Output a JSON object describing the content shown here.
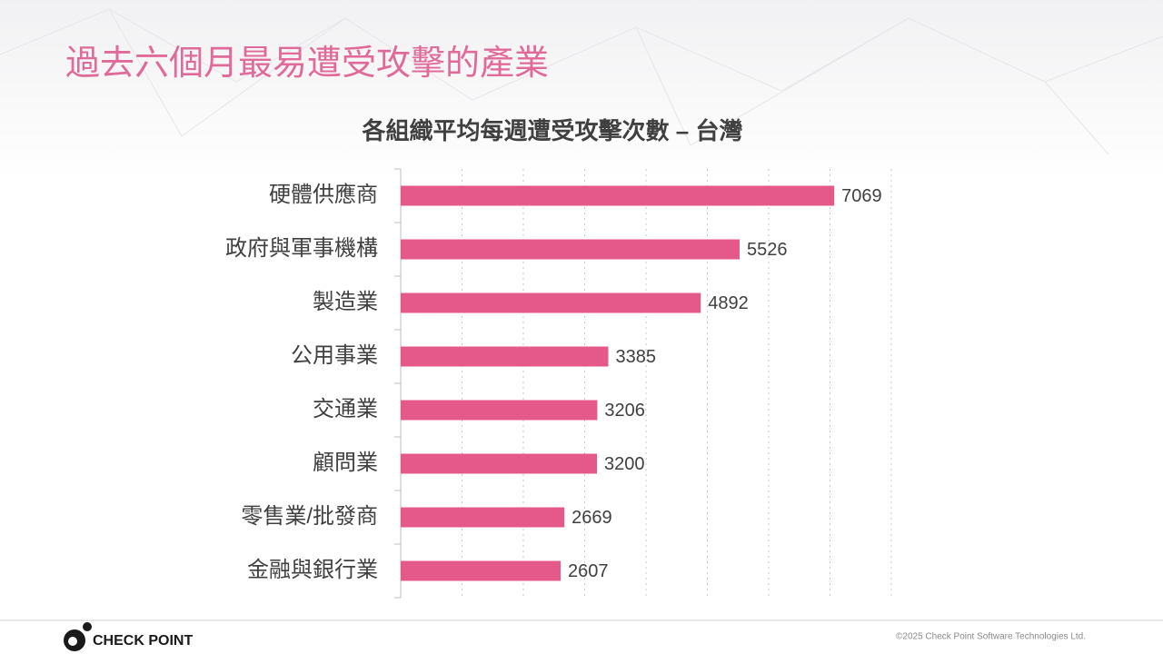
{
  "slide_title": "過去六個月最易遭受攻擊的產業",
  "chart_data": {
    "type": "hbar",
    "title": "各組織平均每週遭受攻擊次數 – 台灣",
    "categories": [
      "硬體供應商",
      "政府與軍事機構",
      "製造業",
      "公用事業",
      "交通業",
      "顧問業",
      "零售業/批發商",
      "金融與銀行業"
    ],
    "values": [
      7069,
      5526,
      4892,
      3385,
      3206,
      3200,
      2669,
      2607
    ],
    "color": "#e5588a",
    "xlim": [
      0,
      8000
    ],
    "xticks": [
      1000,
      2000,
      3000,
      4000,
      5000,
      6000,
      7000,
      8000
    ],
    "grid": true
  },
  "footer": {
    "logo": "CHECK POINT",
    "copyright": "©2025 Check Point Software Technologies Ltd."
  }
}
